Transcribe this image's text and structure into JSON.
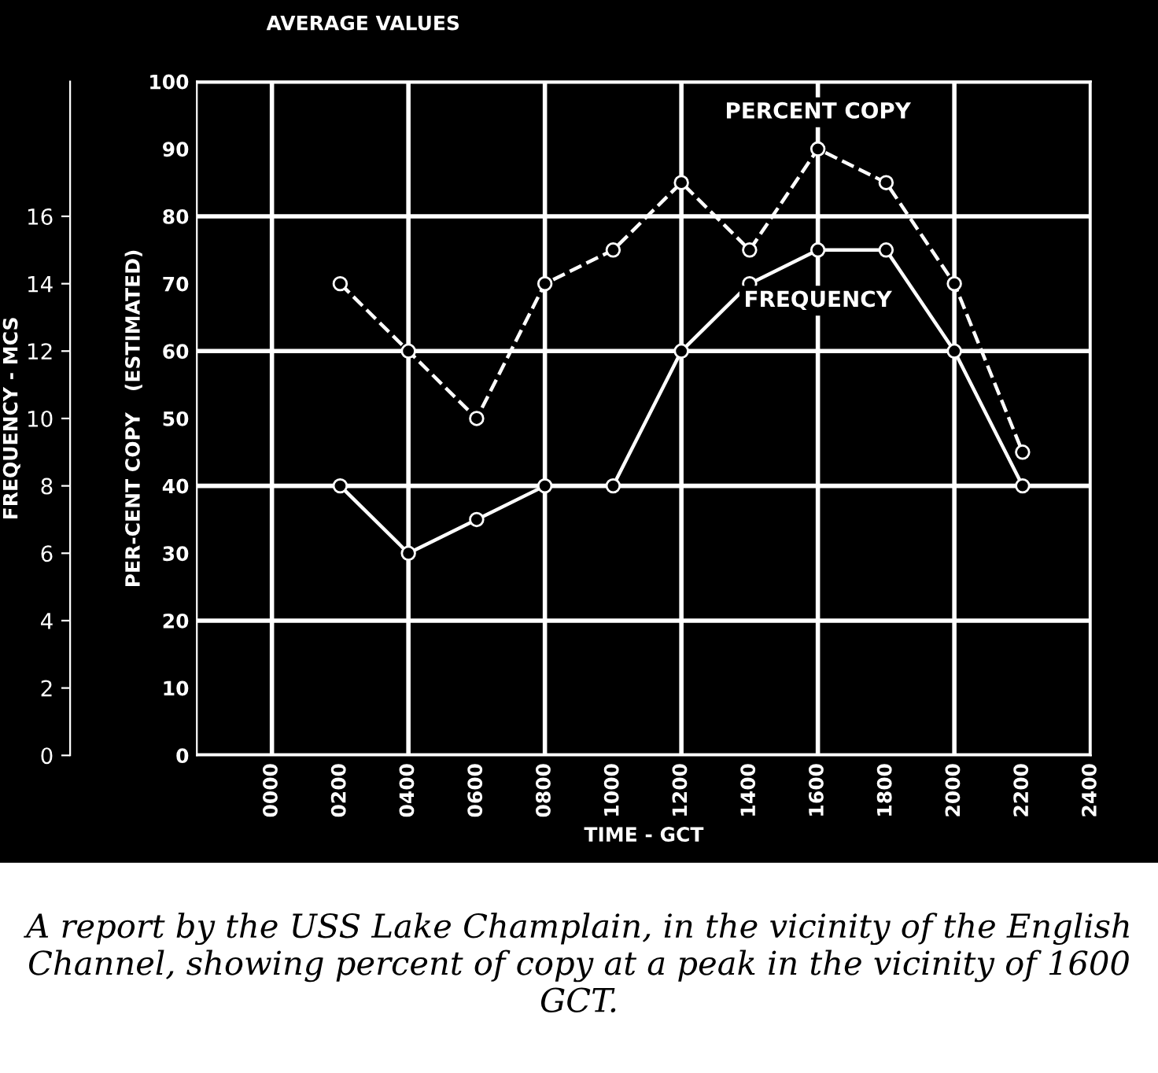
{
  "chart_data": {
    "type": "line",
    "title": "AVERAGE VALUES",
    "xlabel": "TIME - GCT",
    "ylabel": "PER-CENT COPY   (ESTIMATED)",
    "y2label": "FREQUENCY - MCS",
    "x": [
      200,
      400,
      600,
      800,
      1000,
      1200,
      1400,
      1600,
      1800,
      2000,
      2200
    ],
    "series": [
      {
        "name": "PERCENT COPY",
        "color": "#ffffff",
        "line_style": "dashed",
        "values": [
          70,
          60,
          50,
          70,
          75,
          85,
          75,
          90,
          85,
          70,
          45
        ]
      },
      {
        "name": "FREQUENCY",
        "color": "#ffffff",
        "line_style": "solid",
        "axis": "y2",
        "values": [
          8,
          6,
          7,
          8,
          8,
          12,
          14,
          15,
          15,
          12,
          8
        ]
      }
    ],
    "marker": "circle",
    "xlim": [
      -220,
      2400
    ],
    "xticks": [
      {
        "value": 0,
        "label": "0000"
      },
      {
        "value": 200,
        "label": "0200"
      },
      {
        "value": 400,
        "label": "0400"
      },
      {
        "value": 600,
        "label": "0600"
      },
      {
        "value": 800,
        "label": "0800"
      },
      1000,
      1200,
      1400,
      1600,
      1800,
      2000,
      2200,
      2400
    ],
    "ylim": [
      0,
      100
    ],
    "yticks": [
      0,
      10,
      20,
      30,
      40,
      50,
      60,
      70,
      80,
      90,
      100
    ],
    "y2lim": [
      0,
      20
    ],
    "y2ticks": [
      0,
      2,
      4,
      6,
      8,
      10,
      12,
      14,
      16
    ],
    "grid": true,
    "legend": false,
    "annotations": [
      "A report by the USS Lake Champlain, in the vicinity of the English Channel, showing percent of copy at a peak in the vicinity of 1600 GCT."
    ]
  }
}
